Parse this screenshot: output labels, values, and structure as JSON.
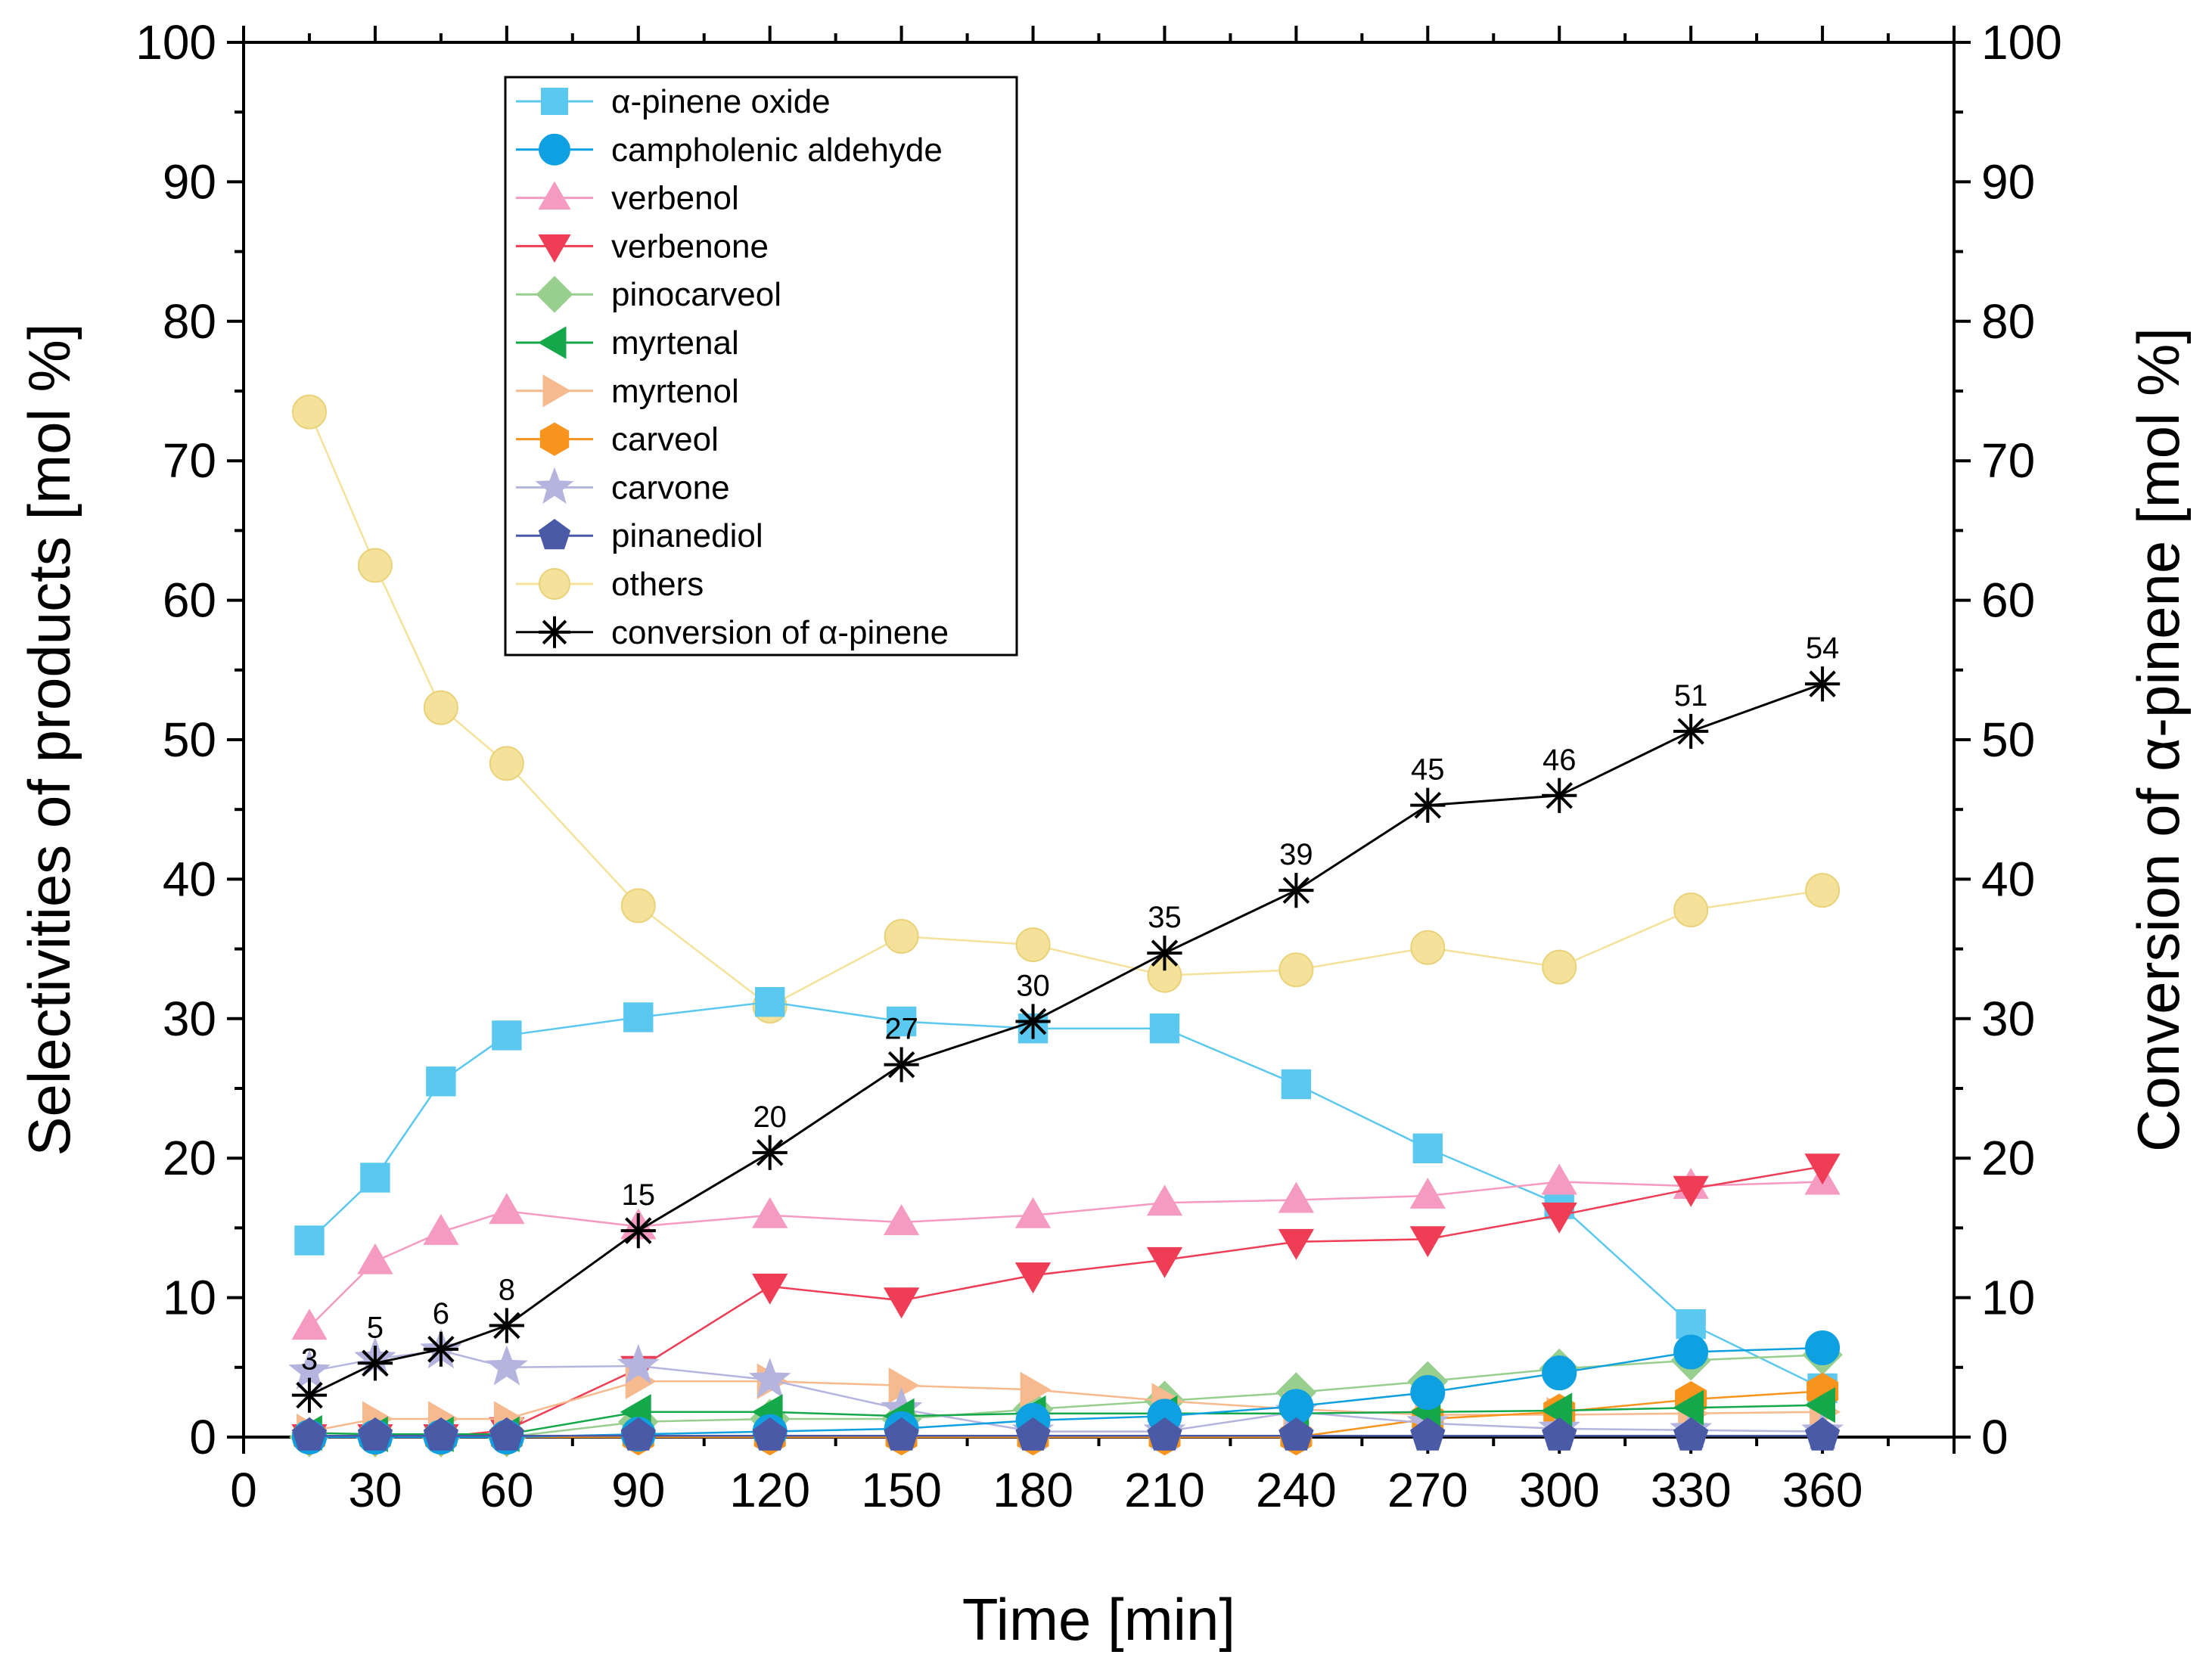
{
  "chart_data": {
    "type": "line",
    "xlabel": "Time [min]",
    "ylabel": "Selectivities of products [mol %]",
    "y2label": "Conversion of α-pinene [mol %]",
    "xlim": [
      0,
      390
    ],
    "ylim": [
      0,
      100
    ],
    "y2lim": [
      0,
      100
    ],
    "x_ticks": [
      0,
      30,
      60,
      90,
      120,
      150,
      180,
      210,
      240,
      270,
      300,
      330,
      360
    ],
    "y_ticks": [
      0,
      10,
      20,
      30,
      40,
      50,
      60,
      70,
      80,
      90,
      100
    ],
    "legend_position": "top-left",
    "x": [
      15,
      30,
      45,
      60,
      90,
      120,
      150,
      180,
      210,
      240,
      270,
      300,
      330,
      360
    ],
    "series": [
      {
        "name": "α-pinene oxide",
        "color": "#5bc8ef",
        "marker": "square",
        "axis": "left",
        "values": [
          14.1,
          18.6,
          25.5,
          28.8,
          30.1,
          31.2,
          29.8,
          29.3,
          29.3,
          25.3,
          20.7,
          16.7,
          8.1,
          3.5
        ]
      },
      {
        "name": "campholenic aldehyde",
        "color": "#0ea0e0",
        "marker": "circle",
        "axis": "left",
        "values": [
          0,
          0,
          0,
          0,
          0.2,
          0.4,
          0.6,
          1.2,
          1.5,
          2.2,
          3.2,
          4.6,
          6.1,
          6.4
        ]
      },
      {
        "name": "verbenol",
        "color": "#f59ac0",
        "marker": "triangle-up",
        "axis": "left",
        "values": [
          7.9,
          12.6,
          14.7,
          16.2,
          15.1,
          15.9,
          15.4,
          15.9,
          16.8,
          17.0,
          17.3,
          18.3,
          18.0,
          18.3
        ]
      },
      {
        "name": "verbenone",
        "color": "#ee3d55",
        "marker": "triangle-down",
        "axis": "left",
        "values": [
          0,
          0,
          0,
          0.5,
          4.9,
          10.8,
          9.8,
          11.6,
          12.7,
          14.0,
          14.2,
          15.9,
          17.8,
          19.4
        ]
      },
      {
        "name": "pinocarveol",
        "color": "#98cf8e",
        "marker": "diamond",
        "axis": "left",
        "values": [
          0,
          0,
          0,
          0,
          1.1,
          1.3,
          1.3,
          2.0,
          2.6,
          3.2,
          4.0,
          4.9,
          5.5,
          5.9
        ]
      },
      {
        "name": "myrtenal",
        "color": "#14a84a",
        "marker": "triangle-left",
        "axis": "left",
        "values": [
          0.3,
          0.2,
          0.2,
          0.2,
          1.8,
          1.8,
          1.5,
          1.7,
          1.7,
          1.7,
          1.8,
          1.9,
          2.1,
          2.3
        ]
      },
      {
        "name": "myrtenol",
        "color": "#f7b98e",
        "marker": "triangle-right",
        "axis": "left",
        "values": [
          0.4,
          1.3,
          1.3,
          1.3,
          4.0,
          4.0,
          3.7,
          3.4,
          2.6,
          2.0,
          1.6,
          1.6,
          1.7,
          1.8
        ]
      },
      {
        "name": "carveol",
        "color": "#f7941d",
        "marker": "hexagon",
        "axis": "left",
        "values": [
          0,
          0,
          0,
          0,
          0,
          0,
          0,
          0,
          0,
          0,
          1.3,
          1.8,
          2.7,
          3.3
        ]
      },
      {
        "name": "carvone",
        "color": "#b4b4de",
        "marker": "star",
        "axis": "left",
        "values": [
          4.7,
          5.6,
          6.2,
          5.0,
          5.1,
          4.1,
          2.0,
          0.4,
          0.4,
          1.8,
          1.0,
          0.6,
          0.5,
          0.4
        ]
      },
      {
        "name": "pinanediol",
        "color": "#4a5aa6",
        "marker": "pentagon",
        "axis": "left",
        "values": [
          0.1,
          0.1,
          0.1,
          0.1,
          0.1,
          0.1,
          0.1,
          0.1,
          0.1,
          0.1,
          0.1,
          0.1,
          0.1,
          0.1
        ]
      },
      {
        "name": "others",
        "color": "#f5e29a",
        "marker": "circle-light",
        "axis": "left",
        "values": [
          73.5,
          62.5,
          52.3,
          48.3,
          38.1,
          30.9,
          35.9,
          35.3,
          33.1,
          33.5,
          35.1,
          33.7,
          37.8,
          39.2
        ]
      },
      {
        "name": "conversion of α-pinene",
        "color": "#000000",
        "marker": "asterisk",
        "axis": "right",
        "values": [
          3,
          5.3,
          6.3,
          8,
          14.8,
          20.4,
          26.7,
          29.8,
          34.7,
          39.2,
          45.3,
          46,
          50.6,
          54
        ],
        "labels": [
          "3",
          "5",
          "6",
          "8",
          "15",
          "20",
          "27",
          "30",
          "35",
          "39",
          "45",
          "46",
          "51",
          "54"
        ]
      }
    ]
  }
}
